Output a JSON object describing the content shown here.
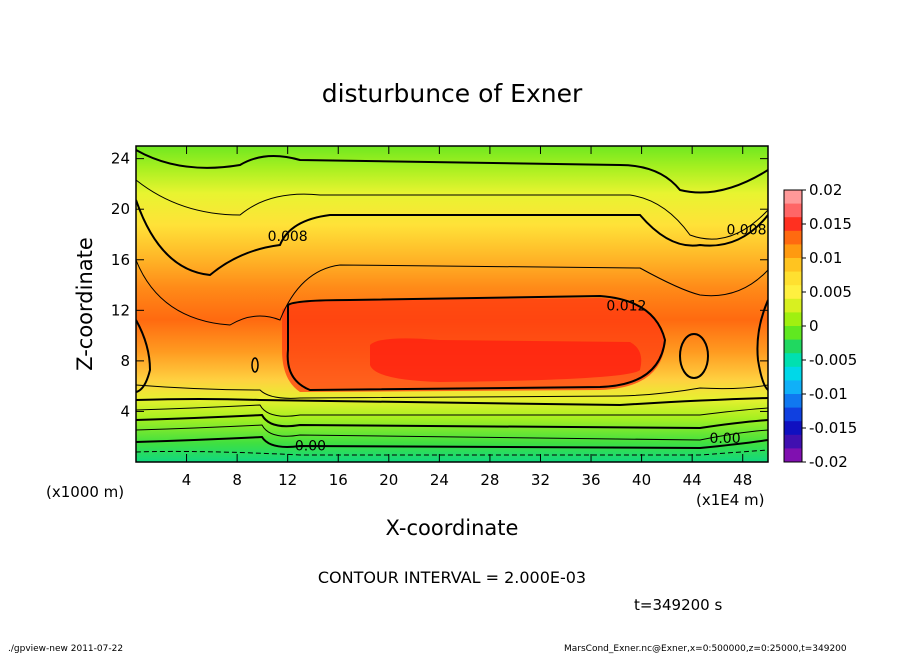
{
  "chart_data": {
    "type": "heatmap",
    "title": "disturbunce of Exner",
    "xlabel": "X-coordinate",
    "ylabel": "Z-coordinate",
    "x_unit_label": "(x1000 m)",
    "x_unit_label_right": "(x1E4 m)",
    "xlim": [
      0,
      50
    ],
    "ylim": [
      0,
      25
    ],
    "x_ticks": [
      4,
      8,
      12,
      16,
      20,
      24,
      28,
      32,
      36,
      40,
      44,
      48
    ],
    "y_ticks": [
      4,
      8,
      12,
      16,
      20,
      24
    ],
    "grid": false,
    "colorbar": {
      "position": "right",
      "min": -0.02,
      "max": 0.02,
      "labels": [
        "0.02",
        "0.015",
        "0.01",
        "0.005",
        "0",
        "-0.005",
        "-0.01",
        "-0.015",
        "-0.02"
      ],
      "colors": [
        "#ff9999",
        "#ff6666",
        "#ff3020",
        "#ff6a10",
        "#ff9a10",
        "#ffc420",
        "#ffe030",
        "#fff040",
        "#d8f020",
        "#a0f010",
        "#60e820",
        "#20d860",
        "#00e0b0",
        "#00d8e8",
        "#10b0f8",
        "#1078f0",
        "#1040e0",
        "#1010c0",
        "#4010b0",
        "#8010b0"
      ]
    },
    "contour_labels": [
      {
        "text": "0.008",
        "x": 12.0,
        "y": 17.5
      },
      {
        "text": "0.008",
        "x": 48.3,
        "y": 18.0
      },
      {
        "text": "0.012",
        "x": 38.8,
        "y": 12.0
      },
      {
        "text": "0.00",
        "x": 13.8,
        "y": 0.9
      },
      {
        "text": "0.00",
        "x": 46.6,
        "y": 1.5
      }
    ],
    "contour_interval_text": "CONTOUR INTERVAL = 2.000E-03",
    "time_text": "t=349200 s"
  },
  "footer": {
    "left": "./gpview-new  2011-07-22",
    "right": "MarsCond_Exner.nc@Exner,x=0:500000,z=0:25000,t=349200"
  }
}
